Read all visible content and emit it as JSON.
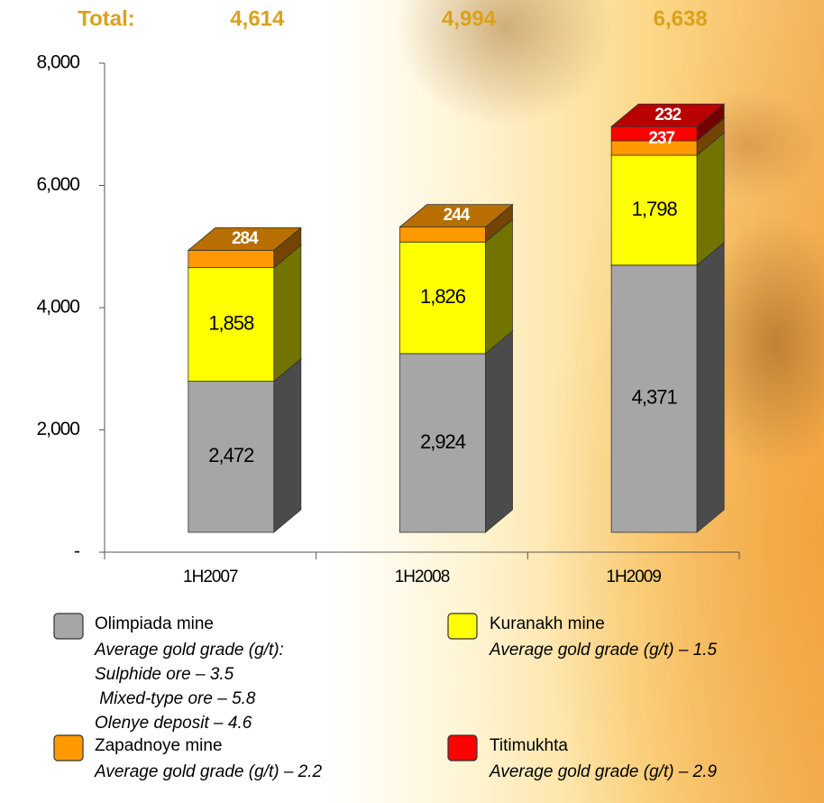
{
  "chart_data": {
    "type": "bar",
    "stacked": true,
    "total_label": "Total:",
    "totals": [
      4614,
      4994,
      6638
    ],
    "total_value_labels": [
      "4,614",
      "4,994",
      "6,638"
    ],
    "categories": [
      "1H2007",
      "1H2008",
      "1H2009"
    ],
    "ylim": [
      0,
      8000
    ],
    "yticks": [
      {
        "value": 0,
        "label": "-"
      },
      {
        "value": 2000,
        "label": "2,000"
      },
      {
        "value": 4000,
        "label": "4,000"
      },
      {
        "value": 6000,
        "label": "6,000"
      },
      {
        "value": 8000,
        "label": "8,000"
      }
    ],
    "series": [
      {
        "name": "Olimpiada mine",
        "color": "#a6a6a6",
        "values": [
          2472,
          2924,
          4371
        ],
        "value_labels": [
          "2,472",
          "2,924",
          "4,371"
        ],
        "description": [
          "Average gold grade (g/t):",
          "Sulphide ore – 3.5",
          " Mixed-type ore – 5.8",
          "Olenye deposit – 4.6"
        ]
      },
      {
        "name": "Kuranakh mine",
        "color": "#ffff00",
        "values": [
          1858,
          1826,
          1798
        ],
        "value_labels": [
          "1,858",
          "1,826",
          "1,798"
        ],
        "description": [
          "Average gold grade (g/t) – 1.5"
        ]
      },
      {
        "name": "Zapadnoye mine",
        "color": "#ff9900",
        "values": [
          284,
          244,
          237
        ],
        "value_labels": [
          "284",
          "244",
          "237"
        ],
        "description": [
          "Average gold grade (g/t) – 2.2"
        ]
      },
      {
        "name": "Titimukhta",
        "color": "#ff0000",
        "values": [
          null,
          null,
          232
        ],
        "value_labels": [
          null,
          null,
          "232"
        ],
        "description": [
          "Average gold grade (g/t) – 2.9"
        ]
      }
    ]
  }
}
